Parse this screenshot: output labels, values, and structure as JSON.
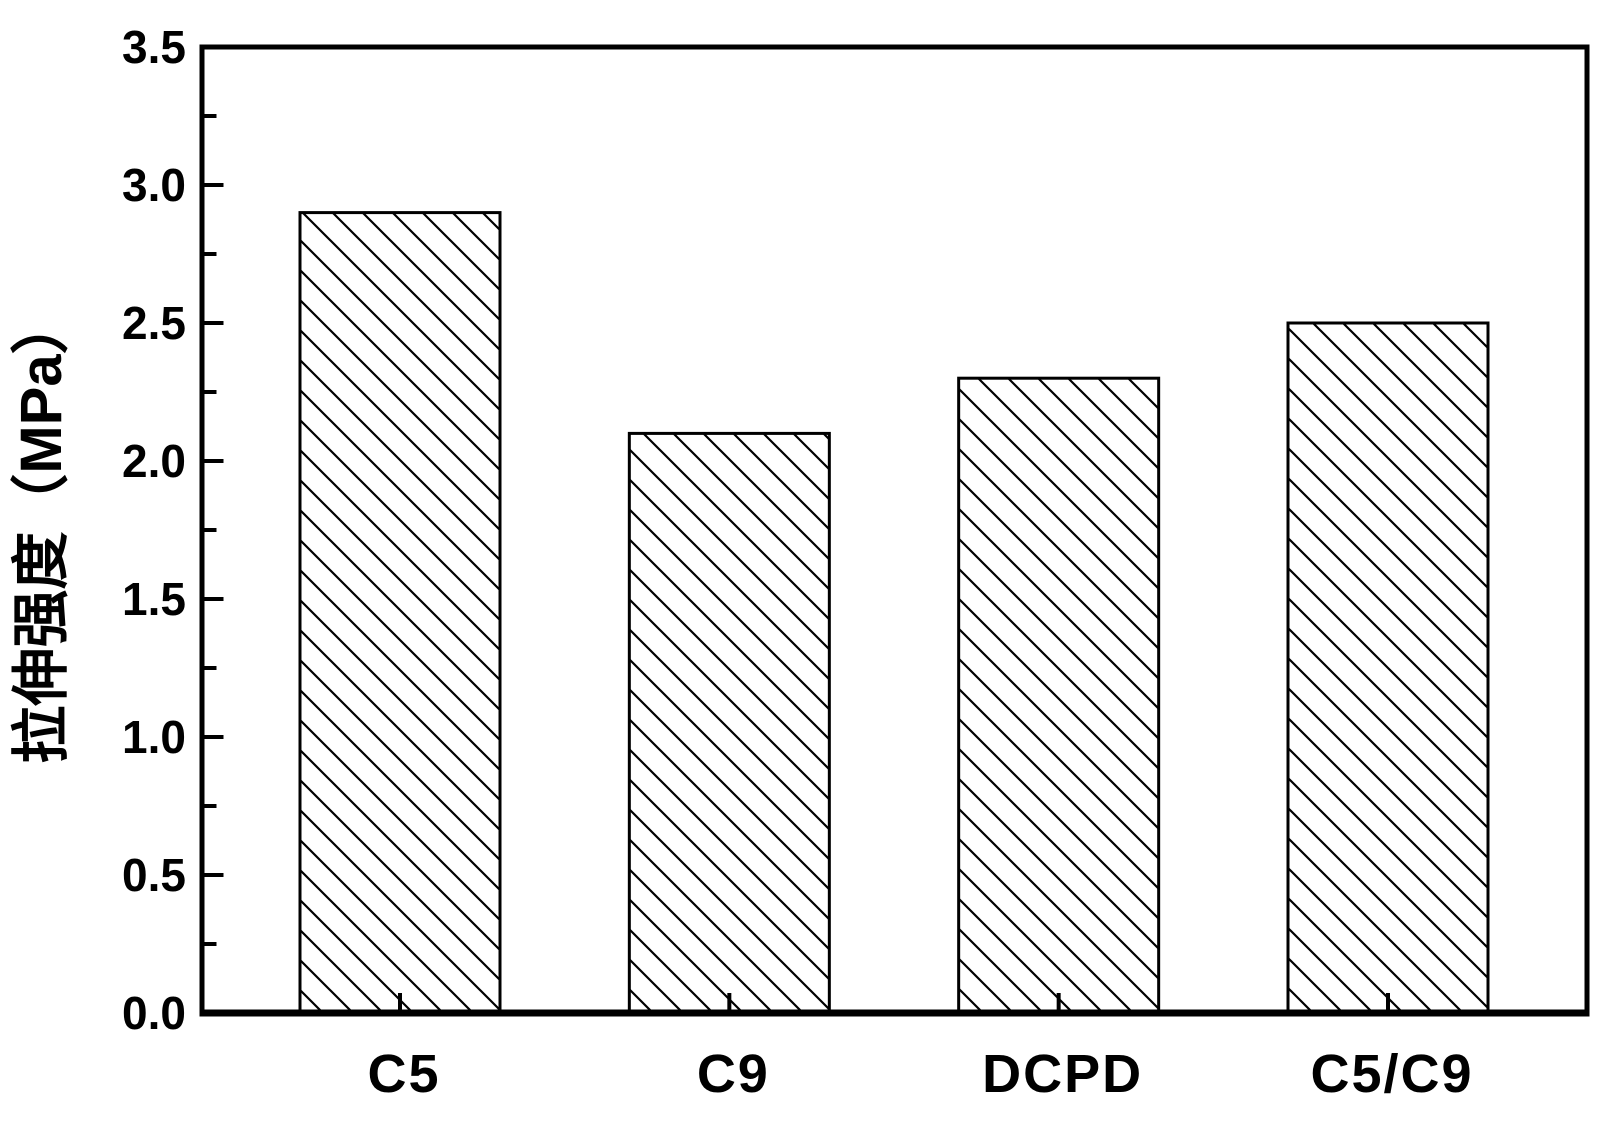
{
  "colors": {
    "foreground": "#000000",
    "background": "#ffffff"
  },
  "chart_data": {
    "type": "bar",
    "categories": [
      "C5",
      "C9",
      "DCPD",
      "C5/C9"
    ],
    "values": [
      2.9,
      2.1,
      2.3,
      2.5
    ],
    "title": "",
    "xlabel": "",
    "ylabel": "拉伸强度（MPa）",
    "ylim": [
      0,
      3.5
    ],
    "ytick_values": [
      0.0,
      0.5,
      1.0,
      1.5,
      2.0,
      2.5,
      3.0,
      3.5
    ],
    "ytick_labels": [
      "0.0",
      "0.5",
      "1.0",
      "1.5",
      "2.0",
      "2.5",
      "3.0",
      "3.5"
    ],
    "y_minor_step": 0.25,
    "grid": false,
    "legend": null,
    "bar_style": {
      "fill": "#ffffff",
      "hatch": "diagonal-down",
      "hatch_color": "#000000",
      "outline_color": "#000000"
    }
  }
}
